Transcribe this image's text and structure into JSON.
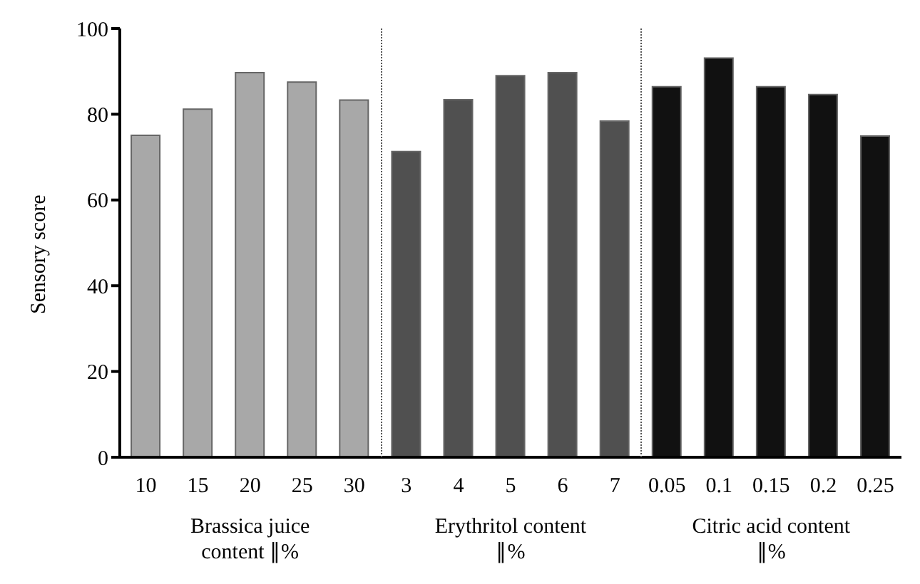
{
  "chart_data": {
    "type": "bar",
    "ylabel": "Sensory score",
    "categories": [
      "10",
      "15",
      "20",
      "25",
      "30",
      "3",
      "4",
      "5",
      "6",
      "7",
      "0.05",
      "0.1",
      "0.15",
      "0.2",
      "0.25"
    ],
    "values": [
      75.1,
      81.2,
      89.7,
      87.5,
      83.3,
      71.3,
      83.4,
      89.0,
      89.7,
      78.4,
      86.4,
      93.1,
      86.4,
      84.6,
      74.9
    ],
    "colors": [
      "#a8a8a8",
      "#a8a8a8",
      "#a8a8a8",
      "#a8a8a8",
      "#a8a8a8",
      "#505050",
      "#505050",
      "#505050",
      "#505050",
      "#505050",
      "#111111",
      "#111111",
      "#111111",
      "#111111",
      "#111111"
    ],
    "ylim": [
      0,
      100
    ],
    "yticks": [
      0,
      20,
      40,
      60,
      80,
      100
    ],
    "grid": false,
    "legend": false,
    "annotations": [
      "Brassica juice content ∥%",
      "Erythritol content ∥%",
      "Citric acid content ∥%"
    ]
  }
}
